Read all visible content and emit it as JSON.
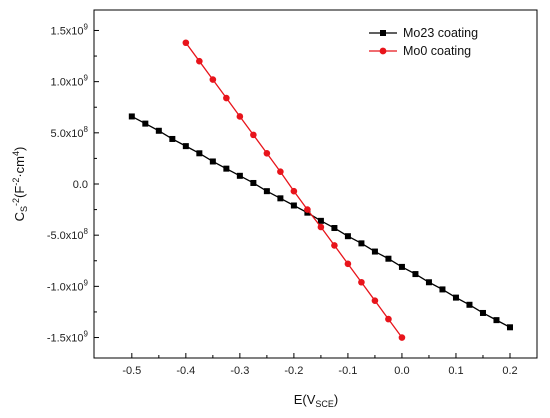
{
  "chart_data": {
    "type": "line",
    "xlabel_main": "E(V",
    "xlabel_sub": "SCE",
    "xlabel_end": ")",
    "ylabel_main": "C",
    "ylabel_sub": "S",
    "ylabel_sup1": "-2",
    "ylabel_mid": "(F",
    "ylabel_sup2": "-2",
    "ylabel_mid2": "·cm",
    "ylabel_sup3": "4",
    "ylabel_end": ")",
    "xlim": [
      -0.57,
      0.25
    ],
    "ylim": [
      -1700000000.0,
      1700000000.0
    ],
    "x_ticks": [
      -0.5,
      -0.4,
      -0.3,
      -0.2,
      -0.1,
      0.0,
      0.1,
      0.2
    ],
    "x_tick_labels": [
      "-0.5",
      "-0.4",
      "-0.3",
      "-0.2",
      "-0.1",
      "0.0",
      "0.1",
      "0.2"
    ],
    "y_ticks": [
      -1500000000.0,
      -1000000000.0,
      -500000000.0,
      0,
      500000000.0,
      1000000000.0,
      1500000000.0
    ],
    "y_tick_labels": [
      {
        "mant": "-1.5x10",
        "exp": "9"
      },
      {
        "mant": "-1.0x10",
        "exp": "9"
      },
      {
        "mant": "-5.0x10",
        "exp": "8"
      },
      {
        "mant": "0.0",
        "exp": ""
      },
      {
        "mant": "5.0x10",
        "exp": "8"
      },
      {
        "mant": "1.0x10",
        "exp": "9"
      },
      {
        "mant": "1.5x10",
        "exp": "9"
      }
    ],
    "grid": false,
    "legend_position": "top-right",
    "series": [
      {
        "name": "Mo23 coating",
        "color": "#000000",
        "marker": "square",
        "x": [
          -0.5,
          -0.475,
          -0.45,
          -0.425,
          -0.4,
          -0.375,
          -0.35,
          -0.325,
          -0.3,
          -0.275,
          -0.25,
          -0.225,
          -0.2,
          -0.175,
          -0.15,
          -0.125,
          -0.1,
          -0.075,
          -0.05,
          -0.025,
          0.0,
          0.025,
          0.05,
          0.075,
          0.1,
          0.125,
          0.15,
          0.175,
          0.2
        ],
        "y": [
          660000000.0,
          590000000.0,
          520000000.0,
          440000000.0,
          370000000.0,
          300000000.0,
          220000000.0,
          150000000.0,
          80000000.0,
          10000000.0,
          -70000000.0,
          -140000000.0,
          -210000000.0,
          -280000000.0,
          -360000000.0,
          -430000000.0,
          -510000000.0,
          -580000000.0,
          -660000000.0,
          -730000000.0,
          -810000000.0,
          -880000000.0,
          -960000000.0,
          -1030000000.0,
          -1110000000.0,
          -1180000000.0,
          -1260000000.0,
          -1330000000.0,
          -1400000000.0
        ]
      },
      {
        "name": "Mo0 coating",
        "color": "#e8141b",
        "marker": "circle",
        "x": [
          -0.4,
          -0.375,
          -0.35,
          -0.325,
          -0.3,
          -0.275,
          -0.25,
          -0.225,
          -0.2,
          -0.175,
          -0.15,
          -0.125,
          -0.1,
          -0.075,
          -0.05,
          -0.025,
          0.0
        ],
        "y": [
          1380000000.0,
          1200000000.0,
          1020000000.0,
          840000000.0,
          660000000.0,
          480000000.0,
          300000000.0,
          120000000.0,
          -70000000.0,
          -250000000.0,
          -420000000.0,
          -600000000.0,
          -780000000.0,
          -960000000.0,
          -1140000000.0,
          -1320000000.0,
          -1500000000.0
        ]
      }
    ]
  }
}
